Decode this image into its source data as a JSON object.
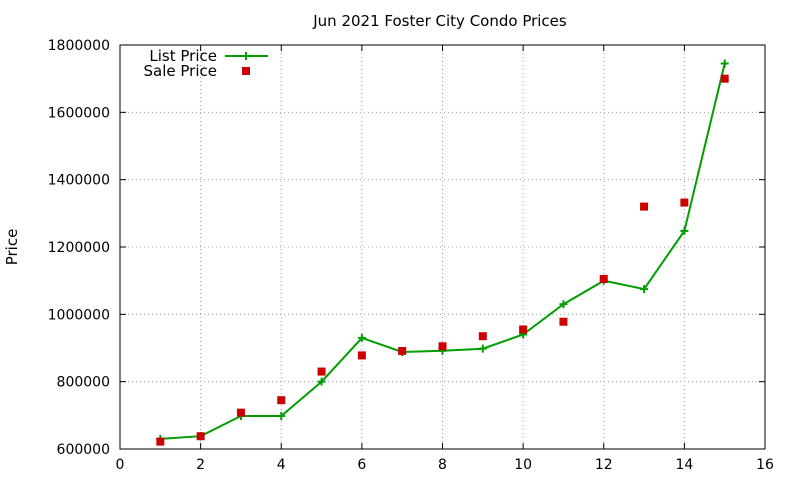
{
  "chart_data": {
    "type": "line",
    "title": "Jun 2021 Foster City Condo Prices",
    "xlabel": "",
    "ylabel": "Price",
    "xlim": [
      0,
      16
    ],
    "ylim": [
      600000,
      1800000
    ],
    "xticks": [
      0,
      2,
      4,
      6,
      8,
      10,
      12,
      14,
      16
    ],
    "yticks": [
      600000,
      800000,
      1000000,
      1200000,
      1400000,
      1600000,
      1800000
    ],
    "grid": true,
    "legend_position": "top-left",
    "series": [
      {
        "name": "List Price",
        "style": "line-with-plus-markers",
        "color": "#009e00",
        "x": [
          1,
          2,
          3,
          4,
          5,
          6,
          7,
          8,
          9,
          10,
          11,
          12,
          13,
          14,
          15
        ],
        "y": [
          630000,
          638000,
          698000,
          698000,
          800000,
          930000,
          888000,
          892000,
          898000,
          940000,
          1030000,
          1100000,
          1075000,
          1248000,
          1745000
        ]
      },
      {
        "name": "Sale Price",
        "style": "square-markers",
        "color": "#cc0000",
        "x": [
          1,
          2,
          3,
          4,
          5,
          6,
          7,
          8,
          9,
          10,
          11,
          12,
          13,
          14,
          15
        ],
        "y": [
          622000,
          638000,
          708000,
          745000,
          830000,
          878000,
          891000,
          905000,
          935000,
          955000,
          978000,
          1105000,
          1320000,
          1332000,
          1700000
        ]
      }
    ]
  }
}
